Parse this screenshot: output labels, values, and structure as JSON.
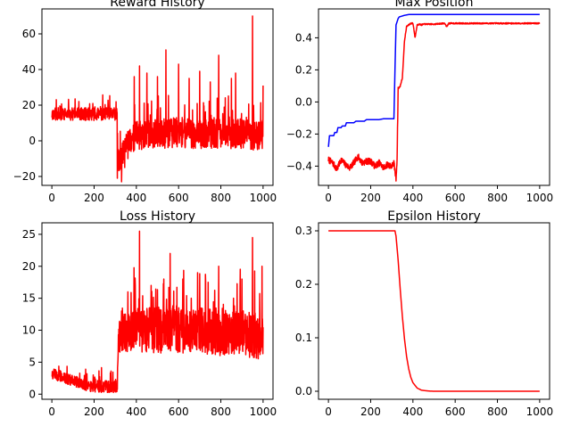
{
  "chart_data": [
    {
      "type": "line",
      "title": "Reward History",
      "xlabel": "",
      "ylabel": "",
      "xlim": [
        -47,
        1047
      ],
      "ylim": [
        -25,
        74
      ],
      "xticks": [
        0,
        200,
        400,
        600,
        800,
        1000
      ],
      "yticks": [
        -20,
        0,
        20,
        40,
        60
      ],
      "grid": false,
      "series": [
        {
          "color": "#ff0000",
          "seed": 11,
          "x": [
            0,
            50,
            100,
            150,
            200,
            250,
            300,
            309,
            312,
            320,
            330,
            340,
            360,
            400,
            450,
            500,
            550,
            600,
            650,
            700,
            750,
            800,
            850,
            900,
            950,
            1000
          ],
          "center": [
            15,
            15,
            15,
            15,
            15,
            15,
            15,
            15,
            -8,
            -12,
            -10,
            -5,
            0,
            3,
            4,
            4,
            4,
            5,
            4,
            4,
            4,
            4,
            4,
            4,
            3,
            3
          ],
          "noise": [
            3,
            3,
            3,
            3,
            3,
            3,
            3,
            3,
            6,
            6,
            6,
            5,
            6,
            7,
            7,
            7,
            7,
            7,
            7,
            7,
            7,
            7,
            7,
            7,
            7,
            7
          ],
          "spikes": [
            [
              330,
              23
            ],
            [
              345,
              27
            ],
            [
              390,
              36
            ],
            [
              415,
              42
            ],
            [
              450,
              38
            ],
            [
              500,
              36
            ],
            [
              540,
              51
            ],
            [
              600,
              43
            ],
            [
              650,
              35
            ],
            [
              700,
              39
            ],
            [
              750,
              33
            ],
            [
              790,
              48
            ],
            [
              850,
              35
            ],
            [
              870,
              38
            ],
            [
              950,
              70
            ],
            [
              1000,
              31
            ]
          ],
          "dips": [
            [
              310,
              -21
            ],
            [
              330,
              -23
            ],
            [
              345,
              -15
            ],
            [
              360,
              -10
            ]
          ]
        }
      ]
    },
    {
      "type": "line",
      "title": "Max Position",
      "xlabel": "",
      "ylabel": "",
      "xlim": [
        -47,
        1047
      ],
      "ylim": [
        -0.52,
        0.58
      ],
      "xticks": [
        0,
        200,
        400,
        600,
        800,
        1000
      ],
      "yticks": [
        -0.4,
        -0.2,
        0.0,
        0.2,
        0.4
      ],
      "ytick_labels": [
        "−0.4",
        "−0.2",
        "0.0",
        "0.2",
        "0.4"
      ],
      "grid": false,
      "series": [
        {
          "color": "#0000ff",
          "x": [
            0,
            5,
            10,
            25,
            30,
            40,
            45,
            50,
            60,
            65,
            70,
            80,
            85,
            90,
            100,
            120,
            130,
            160,
            170,
            180,
            200,
            240,
            260,
            270,
            300,
            305,
            310,
            315,
            320,
            330,
            335,
            360,
            380,
            400,
            1000
          ],
          "y": [
            -0.28,
            -0.21,
            -0.21,
            -0.21,
            -0.19,
            -0.19,
            -0.16,
            -0.16,
            -0.16,
            -0.15,
            -0.15,
            -0.15,
            -0.13,
            -0.13,
            -0.13,
            -0.13,
            -0.12,
            -0.12,
            -0.12,
            -0.11,
            -0.11,
            -0.11,
            -0.105,
            -0.105,
            -0.105,
            -0.105,
            -0.105,
            0.2,
            0.48,
            0.52,
            0.53,
            0.54,
            0.545,
            0.545,
            0.545
          ]
        },
        {
          "color": "#ff0000",
          "seed": 7,
          "x": [
            0,
            20,
            40,
            60,
            80,
            100,
            120,
            140,
            160,
            180,
            200,
            220,
            240,
            260,
            280,
            300,
            310,
            320,
            325,
            330,
            340,
            350,
            360,
            370,
            380,
            390,
            400,
            405,
            410,
            420,
            430,
            440,
            450,
            500,
            550,
            560,
            570,
            600,
            700,
            800,
            900,
            1000
          ],
          "y": [
            -0.36,
            -0.38,
            -0.42,
            -0.36,
            -0.39,
            -0.41,
            -0.38,
            -0.34,
            -0.38,
            -0.37,
            -0.37,
            -0.4,
            -0.38,
            -0.41,
            -0.39,
            -0.4,
            -0.38,
            -0.48,
            -0.35,
            0.08,
            0.1,
            0.15,
            0.38,
            0.47,
            0.48,
            0.49,
            0.49,
            0.45,
            0.4,
            0.48,
            0.485,
            0.48,
            0.485,
            0.485,
            0.49,
            0.47,
            0.49,
            0.49,
            0.49,
            0.49,
            0.49,
            0.49
          ],
          "noise": 0.02,
          "noise_until": 330,
          "noise_after": 0.004
        }
      ]
    },
    {
      "type": "line",
      "title": "Loss History",
      "xlabel": "",
      "ylabel": "",
      "xlim": [
        -47,
        1047
      ],
      "ylim": [
        -0.8,
        26.8
      ],
      "xticks": [
        0,
        200,
        400,
        600,
        800,
        1000
      ],
      "yticks": [
        0,
        5,
        10,
        15,
        20,
        25
      ],
      "grid": false,
      "series": [
        {
          "color": "#ff0000",
          "seed": 5,
          "x": [
            0,
            40,
            80,
            120,
            160,
            200,
            260,
            300,
            310,
            315,
            330,
            350,
            400,
            450,
            500,
            600,
            700,
            800,
            900,
            1000
          ],
          "center": [
            3.2,
            2.8,
            2.3,
            1.9,
            1.4,
            1.1,
            1.0,
            1.0,
            1.5,
            9.5,
            9.5,
            9.5,
            10,
            10,
            10,
            10,
            10,
            9.5,
            9.5,
            9
          ],
          "noise": [
            0.7,
            0.7,
            0.7,
            0.7,
            0.7,
            0.8,
            1.0,
            1.0,
            1.2,
            2.5,
            2.5,
            2.6,
            3.0,
            3.0,
            3.0,
            3.0,
            3.0,
            3.0,
            3.0,
            3.0
          ],
          "floor": [
            0.2,
            0.2,
            0.2,
            0.2,
            0.2,
            0.2,
            0.2,
            0.2,
            0.2,
            5.5,
            5.5,
            5.5,
            5.5,
            5.5,
            5.5,
            5.5,
            5.5,
            5.5,
            5.5,
            5.5
          ],
          "spikes": [
            [
              330,
              13
            ],
            [
              360,
              16
            ],
            [
              395,
              17
            ],
            [
              415,
              25.5
            ],
            [
              470,
              17
            ],
            [
              530,
              18
            ],
            [
              560,
              22
            ],
            [
              620,
              18
            ],
            [
              660,
              15
            ],
            [
              690,
              19
            ],
            [
              740,
              17.5
            ],
            [
              790,
              20
            ],
            [
              860,
              15
            ],
            [
              900,
              18
            ],
            [
              950,
              24.5
            ],
            [
              995,
              20
            ]
          ]
        }
      ]
    },
    {
      "type": "line",
      "title": "Epsilon History",
      "xlabel": "",
      "ylabel": "",
      "xlim": [
        -47,
        1047
      ],
      "ylim": [
        -0.015,
        0.315
      ],
      "xticks": [
        0,
        200,
        400,
        600,
        800,
        1000
      ],
      "yticks": [
        0.0,
        0.1,
        0.2,
        0.3
      ],
      "grid": false,
      "series": [
        {
          "color": "#ff0000",
          "x": [
            0,
            100,
            200,
            300,
            315,
            320,
            330,
            340,
            350,
            360,
            370,
            380,
            390,
            400,
            420,
            440,
            460,
            480,
            500,
            600,
            800,
            1000
          ],
          "y": [
            0.3,
            0.3,
            0.3,
            0.3,
            0.3,
            0.29,
            0.245,
            0.19,
            0.14,
            0.098,
            0.065,
            0.042,
            0.026,
            0.016,
            0.006,
            0.002,
            0.001,
            0.0003,
            0.0,
            0.0,
            0.0,
            0.0
          ]
        }
      ]
    }
  ]
}
